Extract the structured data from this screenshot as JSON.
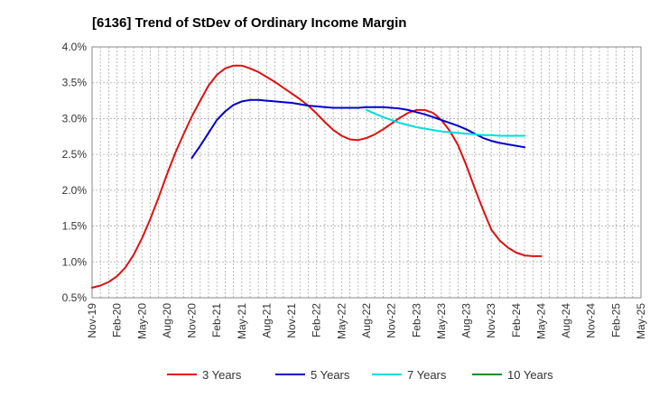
{
  "chart_data": {
    "type": "line",
    "title": "[6136]  Trend of StDev of Ordinary Income Margin",
    "xlabel": "",
    "ylabel": "",
    "x_ticks": [
      "Nov-19",
      "Feb-20",
      "May-20",
      "Aug-20",
      "Nov-20",
      "Feb-21",
      "May-21",
      "Aug-21",
      "Nov-21",
      "Feb-22",
      "May-22",
      "Aug-22",
      "Nov-22",
      "Feb-23",
      "May-23",
      "Aug-23",
      "Nov-23",
      "Feb-24",
      "May-24",
      "Aug-24",
      "Nov-24",
      "Feb-25",
      "May-25"
    ],
    "y_ticks": [
      "0.5%",
      "1.0%",
      "1.5%",
      "2.0%",
      "2.5%",
      "3.0%",
      "3.5%",
      "4.0%"
    ],
    "ylim": [
      0.5,
      4.0
    ],
    "grid": true,
    "legend_position": "bottom",
    "series": [
      {
        "name": "3 Years",
        "color": "#dd1111",
        "points": [
          [
            "Nov-19",
            0.64
          ],
          [
            "Dec-19",
            0.67
          ],
          [
            "Jan-20",
            0.72
          ],
          [
            "Feb-20",
            0.8
          ],
          [
            "Mar-20",
            0.92
          ],
          [
            "Apr-20",
            1.1
          ],
          [
            "May-20",
            1.33
          ],
          [
            "Jun-20",
            1.6
          ],
          [
            "Jul-20",
            1.9
          ],
          [
            "Aug-20",
            2.22
          ],
          [
            "Sep-20",
            2.52
          ],
          [
            "Oct-20",
            2.78
          ],
          [
            "Nov-20",
            3.03
          ],
          [
            "Dec-20",
            3.25
          ],
          [
            "Jan-21",
            3.46
          ],
          [
            "Feb-21",
            3.61
          ],
          [
            "Mar-21",
            3.7
          ],
          [
            "Apr-21",
            3.74
          ],
          [
            "May-21",
            3.74
          ],
          [
            "Jun-21",
            3.7
          ],
          [
            "Jul-21",
            3.65
          ],
          [
            "Aug-21",
            3.58
          ],
          [
            "Sep-21",
            3.51
          ],
          [
            "Oct-21",
            3.43
          ],
          [
            "Nov-21",
            3.35
          ],
          [
            "Dec-21",
            3.27
          ],
          [
            "Jan-22",
            3.18
          ],
          [
            "Feb-22",
            3.07
          ],
          [
            "Mar-22",
            2.95
          ],
          [
            "Apr-22",
            2.84
          ],
          [
            "May-22",
            2.76
          ],
          [
            "Jun-22",
            2.71
          ],
          [
            "Jul-22",
            2.7
          ],
          [
            "Aug-22",
            2.73
          ],
          [
            "Sep-22",
            2.78
          ],
          [
            "Oct-22",
            2.85
          ],
          [
            "Nov-22",
            2.93
          ],
          [
            "Dec-22",
            3.01
          ],
          [
            "Jan-23",
            3.08
          ],
          [
            "Feb-23",
            3.12
          ],
          [
            "Mar-23",
            3.12
          ],
          [
            "Apr-23",
            3.08
          ],
          [
            "May-23",
            2.98
          ],
          [
            "Jun-23",
            2.83
          ],
          [
            "Jul-23",
            2.63
          ],
          [
            "Aug-23",
            2.35
          ],
          [
            "Sep-23",
            2.03
          ],
          [
            "Oct-23",
            1.73
          ],
          [
            "Nov-23",
            1.45
          ],
          [
            "Dec-23",
            1.3
          ],
          [
            "Jan-24",
            1.2
          ],
          [
            "Feb-24",
            1.13
          ],
          [
            "Mar-24",
            1.09
          ],
          [
            "Apr-24",
            1.08
          ],
          [
            "May-24",
            1.08
          ]
        ]
      },
      {
        "name": "5 Years",
        "color": "#0000cc",
        "points": [
          [
            "Nov-20",
            2.45
          ],
          [
            "Dec-20",
            2.62
          ],
          [
            "Jan-21",
            2.8
          ],
          [
            "Feb-21",
            2.98
          ],
          [
            "Mar-21",
            3.1
          ],
          [
            "Apr-21",
            3.19
          ],
          [
            "May-21",
            3.24
          ],
          [
            "Jun-21",
            3.26
          ],
          [
            "Jul-21",
            3.26
          ],
          [
            "Aug-21",
            3.25
          ],
          [
            "Sep-21",
            3.24
          ],
          [
            "Oct-21",
            3.23
          ],
          [
            "Nov-21",
            3.22
          ],
          [
            "Dec-21",
            3.2
          ],
          [
            "Jan-22",
            3.18
          ],
          [
            "Feb-22",
            3.17
          ],
          [
            "Mar-22",
            3.16
          ],
          [
            "Apr-22",
            3.15
          ],
          [
            "May-22",
            3.15
          ],
          [
            "Jun-22",
            3.15
          ],
          [
            "Jul-22",
            3.15
          ],
          [
            "Aug-22",
            3.16
          ],
          [
            "Sep-22",
            3.16
          ],
          [
            "Oct-22",
            3.16
          ],
          [
            "Nov-22",
            3.15
          ],
          [
            "Dec-22",
            3.14
          ],
          [
            "Jan-23",
            3.12
          ],
          [
            "Feb-23",
            3.09
          ],
          [
            "Mar-23",
            3.06
          ],
          [
            "Apr-23",
            3.02
          ],
          [
            "May-23",
            2.98
          ],
          [
            "Jun-23",
            2.94
          ],
          [
            "Jul-23",
            2.9
          ],
          [
            "Aug-23",
            2.85
          ],
          [
            "Sep-23",
            2.79
          ],
          [
            "Oct-23",
            2.73
          ],
          [
            "Nov-23",
            2.69
          ],
          [
            "Dec-23",
            2.66
          ],
          [
            "Jan-24",
            2.64
          ],
          [
            "Feb-24",
            2.62
          ],
          [
            "Mar-24",
            2.6
          ]
        ]
      },
      {
        "name": "7 Years",
        "color": "#00dddd",
        "points": [
          [
            "Aug-22",
            3.12
          ],
          [
            "Sep-22",
            3.07
          ],
          [
            "Oct-22",
            3.02
          ],
          [
            "Nov-22",
            2.98
          ],
          [
            "Dec-22",
            2.94
          ],
          [
            "Jan-23",
            2.91
          ],
          [
            "Feb-23",
            2.88
          ],
          [
            "Mar-23",
            2.86
          ],
          [
            "Apr-23",
            2.84
          ],
          [
            "May-23",
            2.82
          ],
          [
            "Jun-23",
            2.81
          ],
          [
            "Jul-23",
            2.8
          ],
          [
            "Aug-23",
            2.79
          ],
          [
            "Sep-23",
            2.78
          ],
          [
            "Oct-23",
            2.77
          ],
          [
            "Nov-23",
            2.77
          ],
          [
            "Dec-23",
            2.76
          ],
          [
            "Jan-24",
            2.76
          ],
          [
            "Feb-24",
            2.76
          ],
          [
            "Mar-24",
            2.76
          ]
        ]
      },
      {
        "name": "10 Years",
        "color": "#228b22",
        "points": []
      }
    ]
  }
}
